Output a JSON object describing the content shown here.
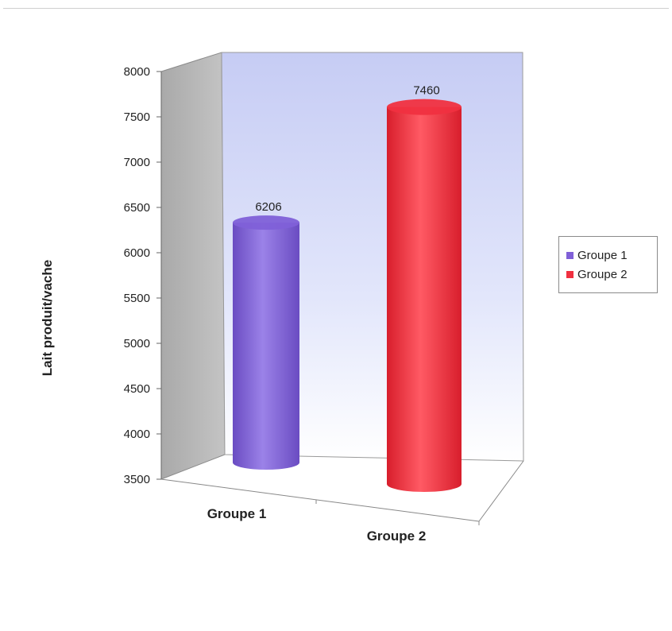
{
  "chart_data": {
    "type": "bar",
    "style": "3d-cylinder",
    "categories": [
      "Groupe 1",
      "Groupe 2"
    ],
    "series": [
      {
        "name": "Groupe 1",
        "category": "Groupe 1",
        "value": 6206,
        "color": "#8060d8"
      },
      {
        "name": "Groupe 2",
        "category": "Groupe 2",
        "value": 7460,
        "color": "#f03040"
      }
    ],
    "title": "",
    "xlabel": "",
    "ylabel": "Lait produit/vache",
    "ylim": [
      3500,
      8000
    ],
    "yticks": [
      "3500",
      "4000",
      "4500",
      "5000",
      "5500",
      "6000",
      "6500",
      "7000",
      "7500",
      "8000"
    ],
    "data_labels": [
      "6206",
      "7460"
    ],
    "legend_position": "right",
    "grid": false,
    "wall_color": "#c8d0f4",
    "side_wall_color": "#b8b8b8"
  }
}
